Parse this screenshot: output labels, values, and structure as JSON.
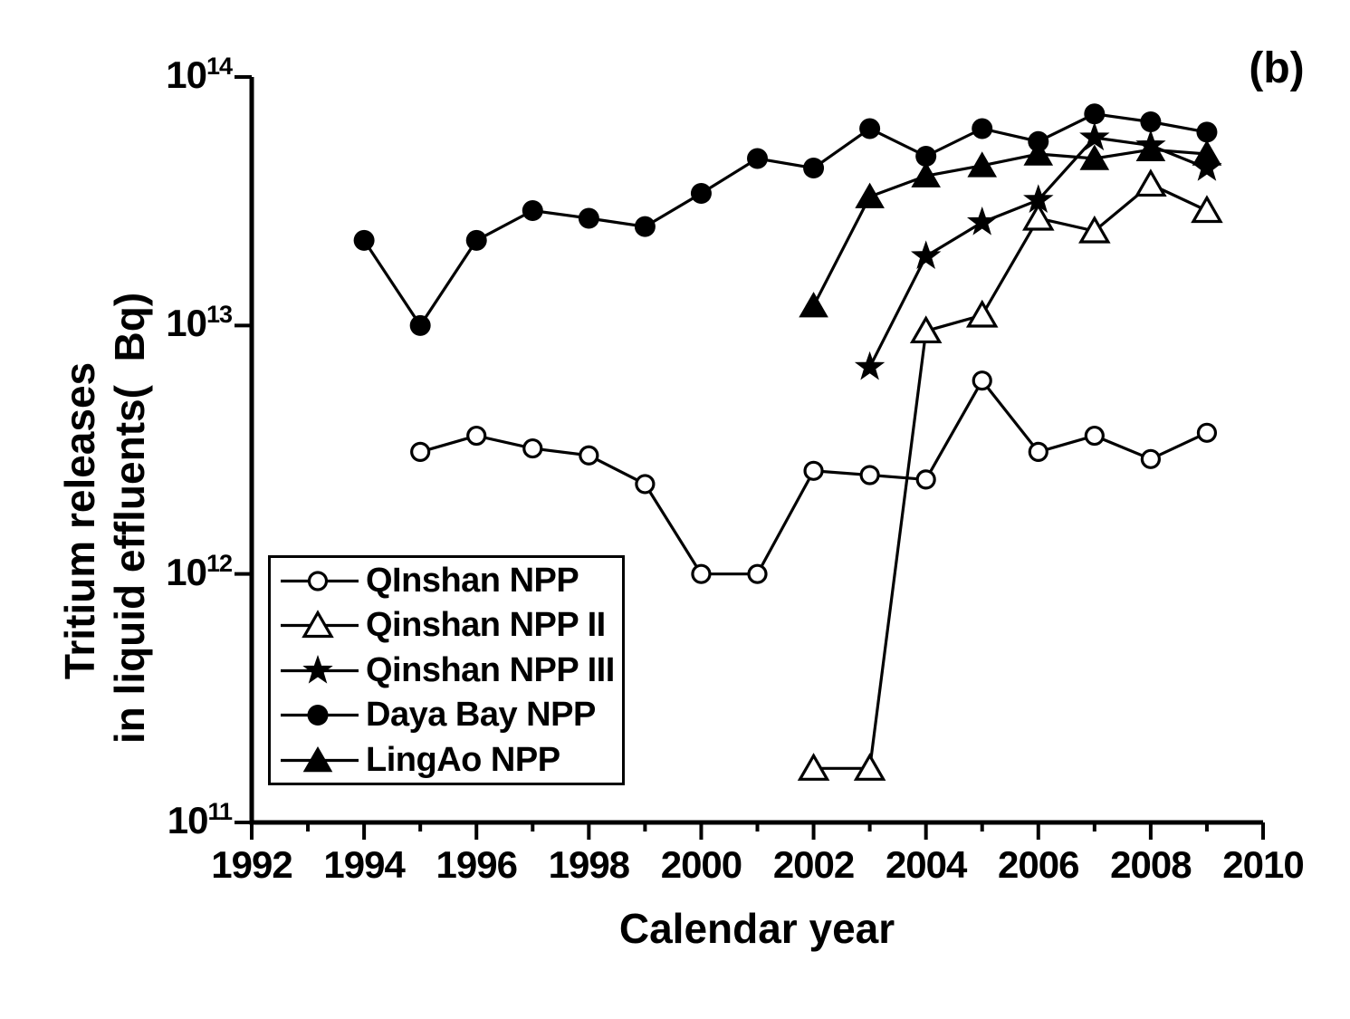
{
  "colors": {
    "foreground": "#000000",
    "background": "#ffffff"
  },
  "figure": {
    "panel_label": "(b)",
    "x_axis_label": "Calendar year",
    "y_axis_label_line1": "Tritium releases",
    "y_axis_label_line2": "in liquid effluents(  Bq)"
  },
  "chart_data": {
    "type": "line",
    "title": "",
    "xlabel": "Calendar year",
    "ylabel": "Tritium releases in liquid effluents( Bq)",
    "panel_label": "(b)",
    "grid": false,
    "legend_position": "lower-left",
    "x_axis": {
      "min": 1992,
      "max": 2010,
      "major_tick_step": 2,
      "minor_tick_step": 1,
      "major_tick_labels": [
        "1992",
        "1994",
        "1996",
        "1998",
        "2000",
        "2002",
        "2004",
        "2006",
        "2008",
        "2010"
      ]
    },
    "y_axis": {
      "scale": "log",
      "min": 100000000000.0,
      "max": 100000000000000.0,
      "tick_base": "10",
      "tick_exponents": [
        11,
        12,
        13,
        14
      ]
    },
    "series": [
      {
        "name": "QInshan NPP",
        "marker": "open-circle",
        "points": [
          [
            1995,
            3100000000000.0
          ],
          [
            1996,
            3600000000000.0
          ],
          [
            1997,
            3200000000000.0
          ],
          [
            1998,
            3000000000000.0
          ],
          [
            1999,
            2300000000000.0
          ],
          [
            2000,
            1000000000000.0
          ],
          [
            2001,
            1000000000000.0
          ],
          [
            2002,
            2600000000000.0
          ],
          [
            2003,
            2500000000000.0
          ],
          [
            2004,
            2400000000000.0
          ],
          [
            2005,
            6000000000000.0
          ],
          [
            2006,
            3100000000000.0
          ],
          [
            2007,
            3600000000000.0
          ],
          [
            2008,
            2900000000000.0
          ],
          [
            2009,
            3700000000000.0
          ]
        ]
      },
      {
        "name": "Qinshan NPP II",
        "marker": "open-triangle",
        "points": [
          [
            2002,
            165000000000.0
          ],
          [
            2003,
            165000000000.0
          ],
          [
            2004,
            9500000000000.0
          ],
          [
            2005,
            11000000000000.0
          ],
          [
            2006,
            27000000000000.0
          ],
          [
            2007,
            24000000000000.0
          ],
          [
            2008,
            37000000000000.0
          ],
          [
            2009,
            29000000000000.0
          ]
        ]
      },
      {
        "name": "Qinshan NPP III",
        "marker": "filled-star",
        "points": [
          [
            2003,
            6800000000000.0
          ],
          [
            2004,
            19000000000000.0
          ],
          [
            2005,
            26000000000000.0
          ],
          [
            2006,
            32000000000000.0
          ],
          [
            2007,
            57000000000000.0
          ],
          [
            2008,
            53000000000000.0
          ],
          [
            2009,
            43000000000000.0
          ]
        ]
      },
      {
        "name": "Daya Bay NPP",
        "marker": "filled-circle",
        "points": [
          [
            1994,
            22000000000000.0
          ],
          [
            1995,
            10000000000000.0
          ],
          [
            1996,
            22000000000000.0
          ],
          [
            1997,
            29000000000000.0
          ],
          [
            1998,
            27000000000000.0
          ],
          [
            1999,
            25000000000000.0
          ],
          [
            2000,
            34000000000000.0
          ],
          [
            2001,
            47000000000000.0
          ],
          [
            2002,
            43000000000000.0
          ],
          [
            2003,
            62000000000000.0
          ],
          [
            2004,
            48000000000000.0
          ],
          [
            2005,
            62000000000000.0
          ],
          [
            2006,
            55000000000000.0
          ],
          [
            2007,
            71000000000000.0
          ],
          [
            2008,
            66000000000000.0
          ],
          [
            2009,
            60000000000000.0
          ]
        ]
      },
      {
        "name": "LingAo NPP",
        "marker": "filled-triangle",
        "points": [
          [
            2002,
            12000000000000.0
          ],
          [
            2003,
            33000000000000.0
          ],
          [
            2004,
            40000000000000.0
          ],
          [
            2005,
            44000000000000.0
          ],
          [
            2006,
            49000000000000.0
          ],
          [
            2007,
            47000000000000.0
          ],
          [
            2008,
            51000000000000.0
          ],
          [
            2009,
            49000000000000.0
          ]
        ]
      }
    ]
  }
}
